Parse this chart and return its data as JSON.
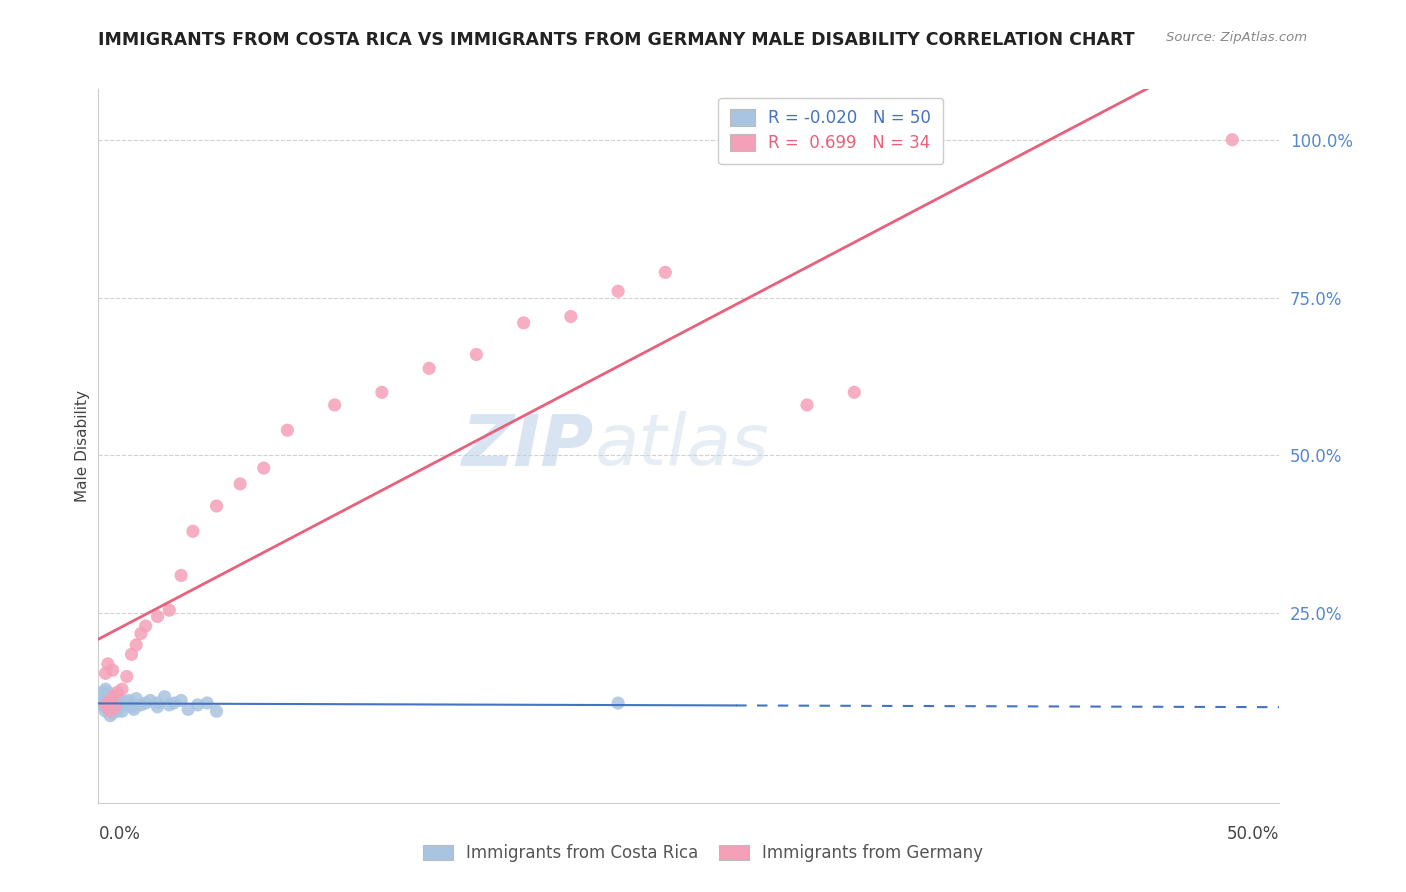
{
  "title": "IMMIGRANTS FROM COSTA RICA VS IMMIGRANTS FROM GERMANY MALE DISABILITY CORRELATION CHART",
  "source": "Source: ZipAtlas.com",
  "ylabel": "Male Disability",
  "ylabel_right_ticks": [
    "100.0%",
    "75.0%",
    "50.0%",
    "25.0%"
  ],
  "ylabel_right_vals": [
    1.0,
    0.75,
    0.5,
    0.25
  ],
  "xlim": [
    0.0,
    0.5
  ],
  "ylim": [
    -0.05,
    1.08
  ],
  "costa_rica_R": -0.02,
  "costa_rica_N": 50,
  "germany_R": 0.699,
  "germany_N": 34,
  "costa_rica_color": "#a8c4e0",
  "germany_color": "#f4a0b8",
  "costa_rica_line_color": "#4472c4",
  "germany_line_color": "#e8607a",
  "watermark_zip": "ZIP",
  "watermark_atlas": "atlas",
  "costa_rica_x": [
    0.001,
    0.002,
    0.002,
    0.003,
    0.003,
    0.003,
    0.004,
    0.004,
    0.004,
    0.005,
    0.005,
    0.005,
    0.006,
    0.006,
    0.007,
    0.007,
    0.008,
    0.008,
    0.009,
    0.009,
    0.01,
    0.01,
    0.011,
    0.012,
    0.013,
    0.014,
    0.015,
    0.016,
    0.018,
    0.02,
    0.022,
    0.025,
    0.028,
    0.03,
    0.032,
    0.035,
    0.038,
    0.042,
    0.046,
    0.05,
    0.002,
    0.003,
    0.004,
    0.005,
    0.006,
    0.007,
    0.008,
    0.009,
    0.025,
    0.22
  ],
  "costa_rica_y": [
    0.105,
    0.108,
    0.112,
    0.095,
    0.102,
    0.118,
    0.098,
    0.105,
    0.115,
    0.1,
    0.108,
    0.12,
    0.103,
    0.11,
    0.098,
    0.112,
    0.105,
    0.118,
    0.102,
    0.108,
    0.112,
    0.095,
    0.105,
    0.108,
    0.112,
    0.102,
    0.098,
    0.115,
    0.105,
    0.108,
    0.112,
    0.102,
    0.118,
    0.105,
    0.108,
    0.112,
    0.098,
    0.105,
    0.108,
    0.095,
    0.125,
    0.13,
    0.125,
    0.088,
    0.092,
    0.118,
    0.095,
    0.105,
    0.108,
    0.108
  ],
  "germany_x": [
    0.003,
    0.004,
    0.005,
    0.006,
    0.007,
    0.008,
    0.01,
    0.012,
    0.014,
    0.016,
    0.018,
    0.02,
    0.025,
    0.03,
    0.035,
    0.04,
    0.05,
    0.06,
    0.07,
    0.08,
    0.1,
    0.12,
    0.14,
    0.16,
    0.18,
    0.2,
    0.22,
    0.24,
    0.3,
    0.32,
    0.003,
    0.004,
    0.006,
    0.48
  ],
  "germany_y": [
    0.105,
    0.108,
    0.095,
    0.118,
    0.102,
    0.125,
    0.13,
    0.15,
    0.185,
    0.2,
    0.218,
    0.23,
    0.245,
    0.255,
    0.31,
    0.38,
    0.42,
    0.455,
    0.48,
    0.54,
    0.58,
    0.6,
    0.638,
    0.66,
    0.71,
    0.72,
    0.76,
    0.79,
    0.58,
    0.6,
    0.155,
    0.17,
    0.16,
    1.0
  ],
  "grid_color": "#cccccc",
  "bg_color": "#ffffff",
  "fig_width": 14.06,
  "fig_height": 8.92,
  "dpi": 100
}
